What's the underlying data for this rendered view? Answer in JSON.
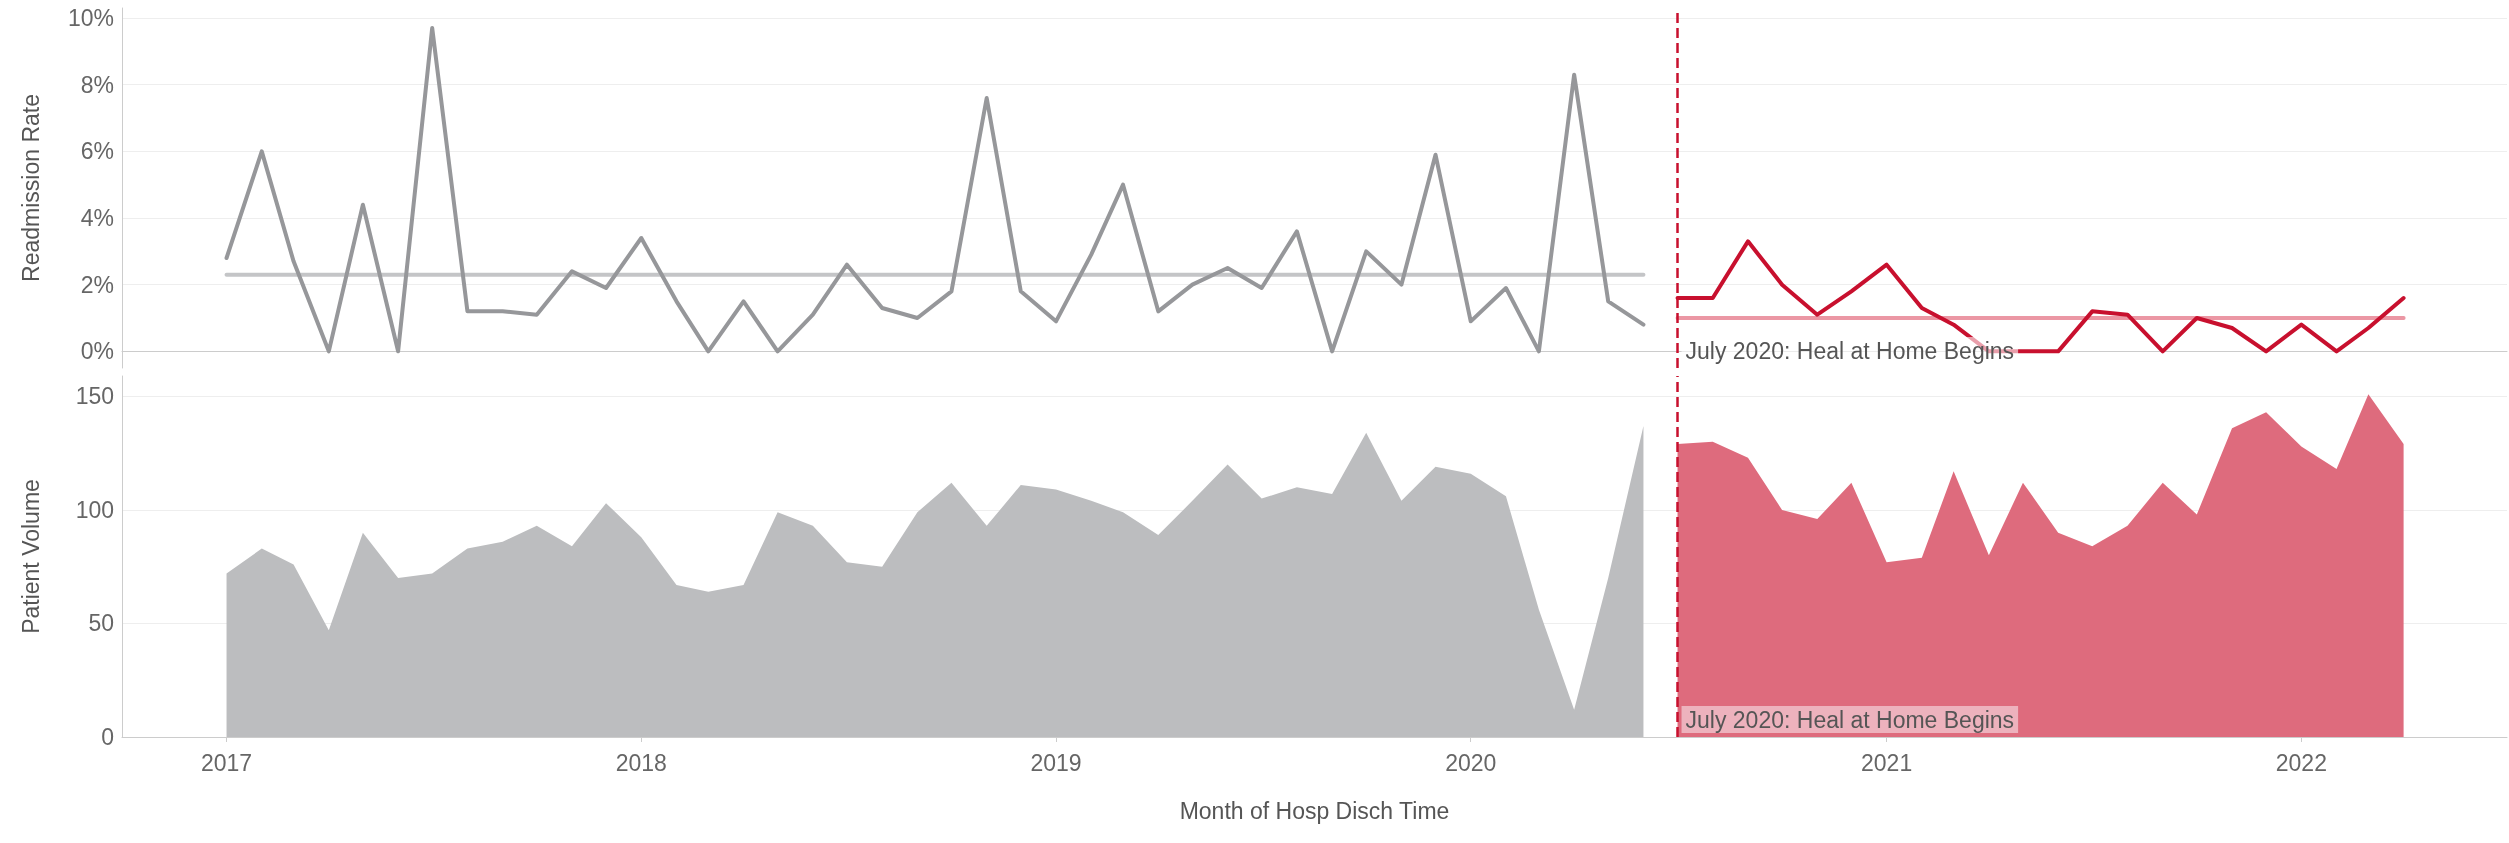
{
  "chart_data": [
    {
      "type": "line",
      "ylabel": "Readmission Rate",
      "xlim": [
        "2016-10",
        "2022-07"
      ],
      "xticks": [
        "2017",
        "2018",
        "2019",
        "2020",
        "2021",
        "2022"
      ],
      "ylim": [
        -0.5,
        10.3
      ],
      "yticks": [
        {
          "value": 0,
          "label": "0%"
        },
        {
          "value": 2,
          "label": "2%"
        },
        {
          "value": 4,
          "label": "4%"
        },
        {
          "value": 6,
          "label": "6%"
        },
        {
          "value": 8,
          "label": "8%"
        },
        {
          "value": 10,
          "label": "10%"
        }
      ],
      "grid": "y",
      "tick_labels": "y",
      "marker": "none",
      "series": [
        {
          "color": "#c4c5c7",
          "x": [
            "2017-01",
            "2020-06"
          ],
          "values": [
            2.3,
            2.3
          ]
        },
        {
          "color": "#eb97a4",
          "x": [
            "2020-07",
            "2022-04"
          ],
          "values": [
            1.0,
            1.0
          ]
        },
        {
          "color": "#96979a",
          "x": [
            "2017-01",
            "2017-02",
            "2017-03",
            "2017-04",
            "2017-05",
            "2017-06",
            "2017-07",
            "2017-08",
            "2017-09",
            "2017-10",
            "2017-11",
            "2017-12",
            "2018-01",
            "2018-02",
            "2018-03",
            "2018-04",
            "2018-05",
            "2018-06",
            "2018-07",
            "2018-08",
            "2018-09",
            "2018-10",
            "2018-11",
            "2018-12",
            "2019-01",
            "2019-02",
            "2019-03",
            "2019-04",
            "2019-05",
            "2019-06",
            "2019-07",
            "2019-08",
            "2019-09",
            "2019-10",
            "2019-11",
            "2019-12",
            "2020-01",
            "2020-02",
            "2020-03",
            "2020-04",
            "2020-05",
            "2020-06"
          ],
          "values": [
            2.8,
            6.0,
            2.7,
            0,
            4.4,
            0,
            9.7,
            1.2,
            1.2,
            1.1,
            2.4,
            1.9,
            3.4,
            1.5,
            0,
            1.5,
            0,
            1.1,
            2.6,
            1.3,
            1.0,
            1.8,
            7.6,
            1.8,
            0.9,
            2.9,
            5.0,
            1.2,
            2.0,
            2.5,
            1.9,
            3.6,
            0,
            3.0,
            2.0,
            5.9,
            0.9,
            1.9,
            0,
            8.3,
            1.5,
            0.8
          ]
        },
        {
          "color": "#c8102e",
          "x": [
            "2020-07",
            "2020-08",
            "2020-09",
            "2020-10",
            "2020-11",
            "2020-12",
            "2021-01",
            "2021-02",
            "2021-03",
            "2021-04",
            "2021-05",
            "2021-06",
            "2021-07",
            "2021-08",
            "2021-09",
            "2021-10",
            "2021-11",
            "2021-12",
            "2022-01",
            "2022-02",
            "2022-03",
            "2022-04"
          ],
          "values": [
            1.6,
            1.6,
            3.3,
            2.0,
            1.1,
            1.8,
            2.6,
            1.3,
            0.8,
            0,
            0,
            0,
            1.2,
            1.1,
            0,
            1.0,
            0.7,
            0,
            0.8,
            0,
            0.7,
            1.6
          ]
        }
      ],
      "ref_lines": [
        {
          "axis": "x",
          "value": "2020-07",
          "label": "July 2020: Heal at Home Begins",
          "color": "#c8102e",
          "line_style": "dashed"
        }
      ]
    },
    {
      "type": "area",
      "ylabel": "Patient Volume",
      "xlabel": "Month of Hosp Disch Time",
      "xlim": [
        "2016-10",
        "2022-07"
      ],
      "xticks": [
        "2017",
        "2018",
        "2019",
        "2020",
        "2021",
        "2022"
      ],
      "ylim": [
        0,
        159
      ],
      "yticks": [
        0,
        50,
        100,
        150
      ],
      "grid": "y",
      "marker": "none",
      "series": [
        {
          "color": "#bcbdbf",
          "x": [
            "2017-01",
            "2017-02",
            "2017-03",
            "2017-04",
            "2017-05",
            "2017-06",
            "2017-07",
            "2017-08",
            "2017-09",
            "2017-10",
            "2017-11",
            "2017-12",
            "2018-01",
            "2018-02",
            "2018-03",
            "2018-04",
            "2018-05",
            "2018-06",
            "2018-07",
            "2018-08",
            "2018-09",
            "2018-10",
            "2018-11",
            "2018-12",
            "2019-01",
            "2019-02",
            "2019-03",
            "2019-04",
            "2019-05",
            "2019-06",
            "2019-07",
            "2019-08",
            "2019-09",
            "2019-10",
            "2019-11",
            "2019-12",
            "2020-01",
            "2020-02",
            "2020-03",
            "2020-04",
            "2020-05",
            "2020-06"
          ],
          "values": [
            72,
            83,
            76,
            47,
            90,
            70,
            72,
            83,
            86,
            93,
            84,
            103,
            88,
            67,
            64,
            67,
            99,
            93,
            77,
            75,
            99,
            112,
            93,
            111,
            109,
            104,
            99,
            89,
            104,
            120,
            105,
            110,
            107,
            134,
            104,
            119,
            116,
            106,
            56,
            12,
            70,
            137
          ]
        },
        {
          "color": "#de6b7d",
          "x": [
            "2020-07",
            "2020-08",
            "2020-09",
            "2020-10",
            "2020-11",
            "2020-12",
            "2021-01",
            "2021-02",
            "2021-03",
            "2021-04",
            "2021-05",
            "2021-06",
            "2021-07",
            "2021-08",
            "2021-09",
            "2021-10",
            "2021-11",
            "2021-12",
            "2022-01",
            "2022-02",
            "2022-03",
            "2022-04"
          ],
          "values": [
            129,
            130,
            123,
            100,
            96,
            112,
            77,
            79,
            117,
            80,
            112,
            90,
            84,
            93,
            112,
            98,
            136,
            143,
            128,
            118,
            151,
            129
          ]
        }
      ],
      "ref_lines": [
        {
          "axis": "x",
          "value": "2020-07",
          "label": "July 2020: Heal at Home Begins",
          "color": "#c8102e",
          "line_style": "dashed"
        }
      ]
    }
  ]
}
